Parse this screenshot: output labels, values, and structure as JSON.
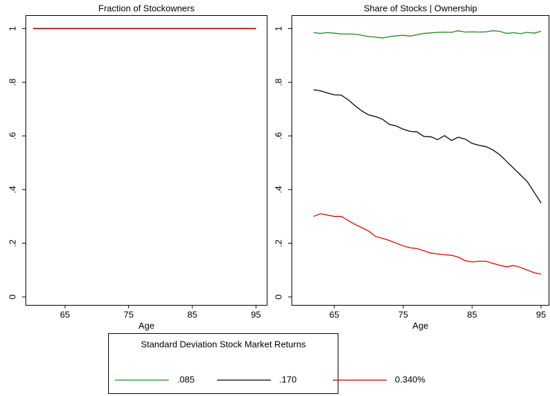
{
  "chart_data": [
    {
      "type": "line",
      "title": "Fraction of Stockowners",
      "xlabel": "Age",
      "x": [
        60,
        95
      ],
      "series": [
        {
          "name": ".085",
          "color": "#1a8a1a",
          "values": [
            1,
            1
          ]
        },
        {
          "name": ".170",
          "color": "#000000",
          "values": [
            1,
            1
          ]
        },
        {
          "name": "0.340%",
          "color": "#b00000",
          "values": [
            1,
            1
          ]
        }
      ],
      "xlim": [
        58.8,
        96.8
      ],
      "xticks": [
        65,
        75,
        85,
        95
      ],
      "ylim": [
        -0.03,
        1.05
      ],
      "yticks": [
        0,
        {
          "value": 0.2,
          "label": ".2"
        },
        {
          "value": 0.4,
          "label": ".4"
        },
        {
          "value": 0.6,
          "label": ".6"
        },
        {
          "value": 0.8,
          "label": ".8"
        },
        1
      ]
    },
    {
      "type": "line",
      "title": "Share of Stocks | Ownership",
      "xlabel": "Age",
      "x": [
        62,
        63,
        64,
        65,
        66,
        67,
        68,
        69,
        70,
        71,
        72,
        73,
        74,
        75,
        76,
        77,
        78,
        79,
        80,
        81,
        82,
        83,
        84,
        85,
        86,
        87,
        88,
        89,
        90,
        91,
        92,
        93,
        94,
        95
      ],
      "series": [
        {
          "name": ".085",
          "color": "#1a8a1a",
          "values": [
            0.985,
            0.982,
            0.985,
            0.983,
            0.98,
            0.98,
            0.979,
            0.975,
            0.97,
            0.968,
            0.965,
            0.97,
            0.973,
            0.975,
            0.972,
            0.977,
            0.982,
            0.984,
            0.986,
            0.987,
            0.986,
            0.992,
            0.987,
            0.988,
            0.987,
            0.988,
            0.992,
            0.99,
            0.982,
            0.985,
            0.981,
            0.986,
            0.983,
            0.99
          ]
        },
        {
          "name": ".170",
          "color": "#000000",
          "values": [
            0.772,
            0.768,
            0.76,
            0.753,
            0.752,
            0.735,
            0.713,
            0.693,
            0.678,
            0.672,
            0.662,
            0.643,
            0.637,
            0.625,
            0.617,
            0.615,
            0.598,
            0.597,
            0.586,
            0.601,
            0.583,
            0.595,
            0.588,
            0.572,
            0.565,
            0.56,
            0.548,
            0.53,
            0.505,
            0.48,
            0.455,
            0.43,
            0.39,
            0.35
          ]
        },
        {
          "name": "0.340%",
          "color": "#e00000",
          "values": [
            0.3,
            0.31,
            0.305,
            0.3,
            0.3,
            0.285,
            0.27,
            0.258,
            0.245,
            0.225,
            0.218,
            0.21,
            0.2,
            0.19,
            0.183,
            0.18,
            0.172,
            0.163,
            0.16,
            0.157,
            0.155,
            0.148,
            0.135,
            0.13,
            0.133,
            0.133,
            0.125,
            0.118,
            0.112,
            0.117,
            0.11,
            0.1,
            0.09,
            0.085
          ]
        }
      ],
      "xlim": [
        58.8,
        96.2
      ],
      "xticks": [
        65,
        75,
        85,
        95
      ],
      "ylim": [
        -0.03,
        1.05
      ],
      "yticks": [
        0,
        {
          "value": 0.2,
          "label": ".2"
        },
        {
          "value": 0.4,
          "label": ".4"
        },
        {
          "value": 0.6,
          "label": ".6"
        },
        {
          "value": 0.8,
          "label": ".8"
        },
        1
      ]
    }
  ],
  "legend": {
    "title": "Standard Deviation Stock Market Returns"
  }
}
